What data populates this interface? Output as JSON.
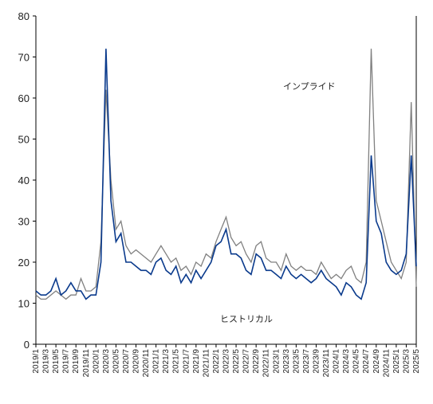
{
  "chart_data": {
    "type": "line",
    "categories": [
      "2019/1",
      null,
      "2019/3",
      null,
      "2019/5",
      null,
      "2019/7",
      null,
      "2019/9",
      null,
      "2019/11",
      null,
      "2020/1",
      null,
      "2020/3",
      null,
      "2020/5",
      null,
      "2020/7",
      null,
      "2020/9",
      null,
      "2020/11",
      null,
      "2021/1",
      null,
      "2021/3",
      null,
      "2021/5",
      null,
      "2021/7",
      null,
      "2021/9",
      null,
      "2021/11",
      null,
      "2022/1",
      null,
      "2022/3",
      null,
      "2022/5",
      null,
      "2022/7",
      null,
      "2022/9",
      null,
      "2022/11",
      null,
      "2023/1",
      null,
      "2023/3",
      null,
      "2023/5",
      null,
      "2023/7",
      null,
      "2023/9",
      null,
      "2023/11",
      null,
      "2024/1",
      null,
      "2024/3",
      null,
      "2024/5",
      null,
      "2024/7",
      null,
      "2024/9",
      null,
      "2024/11",
      null,
      "2025/1",
      null,
      "2025/3",
      null,
      "2025/5"
    ],
    "series": [
      {
        "name": "インプライド",
        "color": "#808080",
        "values": [
          12,
          11,
          11,
          12,
          13,
          12,
          11,
          12,
          12,
          16,
          13,
          13,
          14,
          25,
          62,
          40,
          28,
          30,
          24,
          22,
          23,
          22,
          21,
          20,
          22,
          24,
          22,
          20,
          21,
          18,
          19,
          17,
          20,
          19,
          22,
          21,
          25,
          28,
          31,
          26,
          24,
          25,
          22,
          20,
          24,
          25,
          21,
          20,
          20,
          18,
          22,
          19,
          18,
          19,
          18,
          18,
          17,
          20,
          18,
          16,
          17,
          16,
          18,
          19,
          16,
          15,
          20,
          72,
          35,
          30,
          25,
          20,
          18,
          16,
          20,
          59,
          14
        ]
      },
      {
        "name": "ヒストリカル",
        "color": "#0a3a8c",
        "values": [
          13,
          12,
          12,
          13,
          16,
          12,
          13,
          15,
          13,
          13,
          11,
          12,
          12,
          20,
          72,
          35,
          25,
          27,
          20,
          20,
          19,
          18,
          18,
          17,
          20,
          21,
          18,
          17,
          19,
          15,
          17,
          15,
          18,
          16,
          18,
          20,
          24,
          25,
          28,
          22,
          22,
          21,
          18,
          17,
          22,
          21,
          18,
          18,
          17,
          16,
          19,
          17,
          16,
          17,
          16,
          15,
          16,
          18,
          16,
          15,
          14,
          12,
          15,
          14,
          12,
          11,
          15,
          46,
          30,
          27,
          20,
          18,
          17,
          18,
          22,
          46,
          19
        ]
      }
    ],
    "ylim": [
      0,
      80
    ],
    "yticks": [
      0,
      10,
      20,
      30,
      40,
      50,
      60,
      70,
      80
    ]
  }
}
